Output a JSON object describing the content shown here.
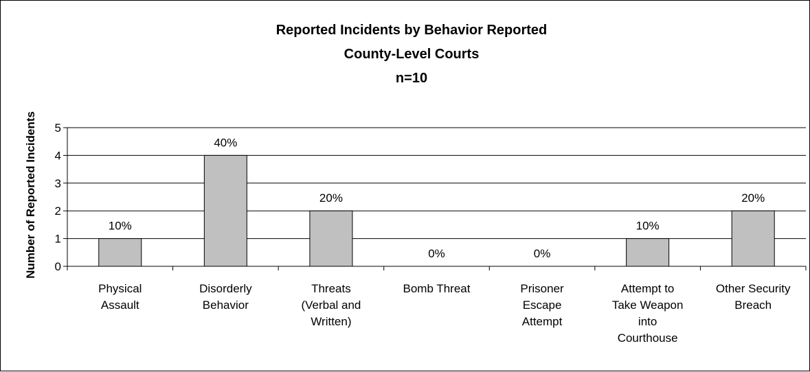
{
  "chart_data": {
    "type": "bar",
    "title_lines": [
      "Reported Incidents by Behavior Reported",
      "County-Level Courts",
      "n=10"
    ],
    "xlabel": "",
    "ylabel": "Number of Reported Incidents",
    "ylim": [
      0,
      5
    ],
    "yticks": [
      "0",
      "1",
      "2",
      "3",
      "4",
      "5"
    ],
    "grid": true,
    "legend": "none",
    "bar_color": "#c0c0c0",
    "categories": [
      [
        "Physical",
        "Assault"
      ],
      [
        "Disorderly",
        "Behavior"
      ],
      [
        "Threats",
        "(Verbal and",
        "Written)"
      ],
      [
        "Bomb Threat"
      ],
      [
        "Prisoner",
        "Escape",
        "Attempt"
      ],
      [
        "Attempt to",
        "Take Weapon",
        "into",
        "Courthouse"
      ],
      [
        "Other Security",
        "Breach"
      ]
    ],
    "values": [
      1,
      4,
      2,
      0,
      0,
      1,
      2
    ],
    "data_labels": [
      "10%",
      "40%",
      "20%",
      "0%",
      "0%",
      "10%",
      "20%"
    ]
  }
}
